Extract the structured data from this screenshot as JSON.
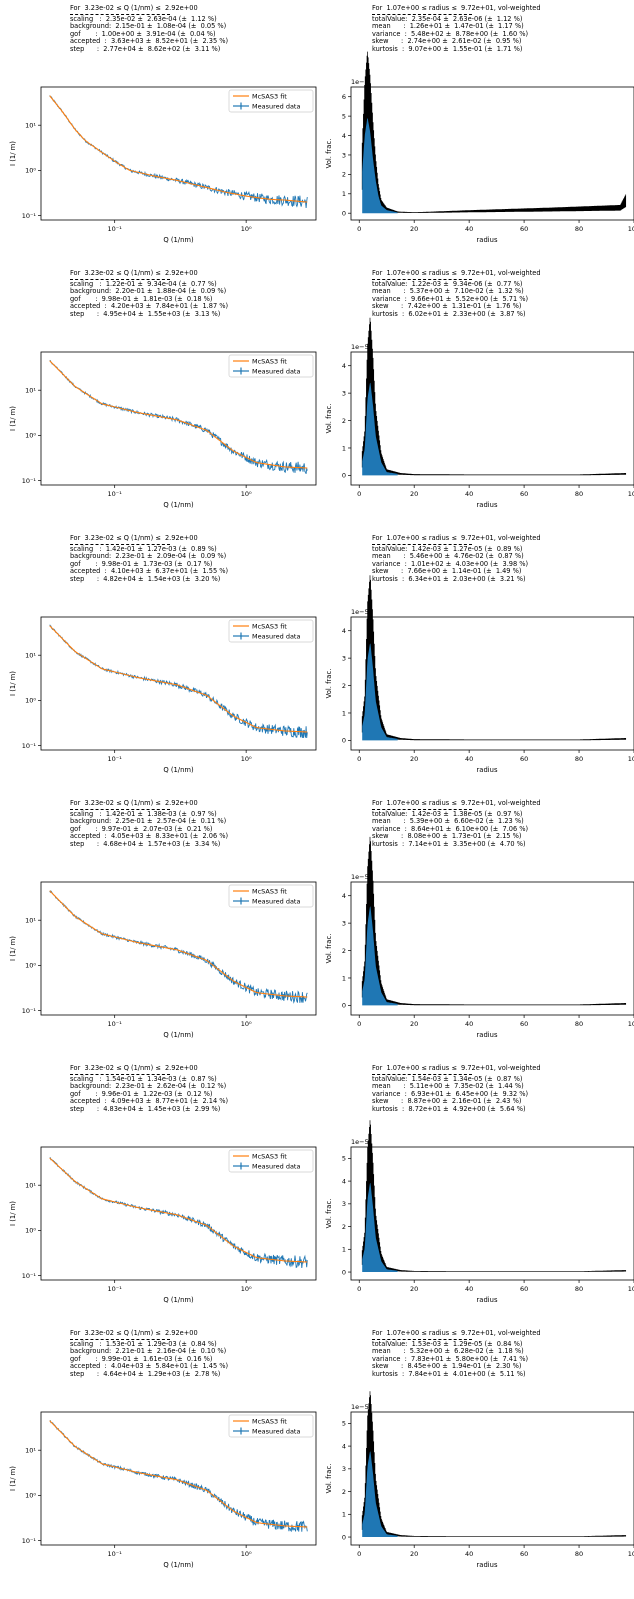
{
  "common": {
    "q_range": "For  3.23e-02 ≤ Q (1/nm) ≤  2.92e+00",
    "r_range": "For  1.07e+00 ≤ radius ≤  9.72e+01, vol-weighted",
    "legend_fit": "McSAS3 fit",
    "legend_measured": "Measured data",
    "left_xlabel": "Q (1/nm)",
    "left_ylabel": "I (1/ m)",
    "right_xlabel": "radius",
    "right_ylabel": "Vol. frac.",
    "left_xticks": [
      "10⁻¹",
      "10⁰"
    ],
    "left_yticks": [
      "10¹",
      "10⁰",
      "10⁻¹"
    ],
    "right_xticks": [
      "0",
      "20",
      "40",
      "60",
      "80",
      "100"
    ],
    "colors": {
      "fit": "#ff7f0e",
      "measured": "#1f77b4",
      "hist_fill": "#1f77b4",
      "hist_err": "#000000"
    }
  },
  "panels": [
    {
      "left_stats": [
        "scaling   :  2.35e-02 ±  2.63e-04 (±  1.12 %)",
        "background:  2.15e-01 ±  1.08e-04 (±  0.05 %)",
        "gof       :  1.00e+00 ±  3.91e-04 (±  0.04 %)",
        "accepted  :  3.63e+03 ±  8.52e+01 (±  2.35 %)",
        "step      :  2.77e+04 ±  8.62e+02 (±  3.11 %)"
      ],
      "right_stats": [
        "totalValue:  2.35e-04 ±  2.63e-06 (±  1.12 %)",
        "mean      :  1.26e+01 ±  1.47e-01 (±  1.17 %)",
        "variance  :  5.48e+02 ±  8.78e+00 (±  1.60 %)",
        "skew      :  2.74e+00 ±  2.61e-02 (±  0.95 %)",
        "kurtosis  :  9.07e+00 ±  1.55e-01 (±  1.71 %)"
      ],
      "right_scale": "1e−6",
      "right_yticks": [
        "0",
        "1",
        "2",
        "3",
        "4",
        "5",
        "6"
      ]
    },
    {
      "left_stats": [
        "scaling   :  1.22e-01 ±  9.34e-04 (±  0.77 %)",
        "background:  2.20e-01 ±  1.88e-04 (±  0.09 %)",
        "gof       :  9.98e-01 ±  1.81e-03 (±  0.18 %)",
        "accepted  :  4.20e+03 ±  7.84e+01 (±  1.87 %)",
        "step      :  4.95e+04 ±  1.55e+03 (±  3.13 %)"
      ],
      "right_stats": [
        "totalValue:  1.22e-03 ±  9.34e-06 (±  0.77 %)",
        "mean      :  5.37e+00 ±  7.10e-02 (±  1.32 %)",
        "variance  :  9.66e+01 ±  5.52e+00 (±  5.71 %)",
        "skew      :  7.42e+00 ±  1.31e-01 (±  1.76 %)",
        "kurtosis  :  6.02e+01 ±  2.33e+00 (±  3.87 %)"
      ],
      "right_scale": "1e−5",
      "right_yticks": [
        "0",
        "1",
        "2",
        "3",
        "4"
      ]
    },
    {
      "left_stats": [
        "scaling   :  1.42e-01 ±  1.27e-03 (±  0.89 %)",
        "background:  2.23e-01 ±  2.09e-04 (±  0.09 %)",
        "gof       :  9.98e-01 ±  1.73e-03 (±  0.17 %)",
        "accepted  :  4.10e+03 ±  6.37e+01 (±  1.55 %)",
        "step      :  4.82e+04 ±  1.54e+03 (±  3.20 %)"
      ],
      "right_stats": [
        "totalValue:  1.42e-03 ±  1.27e-05 (±  0.89 %)",
        "mean      :  5.46e+00 ±  4.76e-02 (±  0.87 %)",
        "variance  :  1.01e+02 ±  4.03e+00 (±  3.98 %)",
        "skew      :  7.66e+00 ±  1.14e-01 (±  1.49 %)",
        "kurtosis  :  6.34e+01 ±  2.03e+00 (±  3.21 %)"
      ],
      "right_scale": "1e−5",
      "right_yticks": [
        "0",
        "1",
        "2",
        "3",
        "4"
      ]
    },
    {
      "left_stats": [
        "scaling   :  1.42e-01 ±  1.38e-03 (±  0.97 %)",
        "background:  2.25e-01 ±  2.57e-04 (±  0.11 %)",
        "gof       :  9.97e-01 ±  2.07e-03 (±  0.21 %)",
        "accepted  :  4.05e+03 ±  8.33e+01 (±  2.06 %)",
        "step      :  4.68e+04 ±  1.57e+03 (±  3.34 %)"
      ],
      "right_stats": [
        "totalValue:  1.42e-03 ±  1.38e-05 (±  0.97 %)",
        "mean      :  5.39e+00 ±  6.60e-02 (±  1.23 %)",
        "variance  :  8.64e+01 ±  6.10e+00 (±  7.06 %)",
        "skew      :  8.08e+00 ±  1.73e-01 (±  2.15 %)",
        "kurtosis  :  7.14e+01 ±  3.35e+00 (±  4.70 %)"
      ],
      "right_scale": "1e−5",
      "right_yticks": [
        "0",
        "1",
        "2",
        "3",
        "4"
      ]
    },
    {
      "left_stats": [
        "scaling   :  1.54e-01 ±  1.34e-03 (±  0.87 %)",
        "background:  2.23e-01 ±  2.62e-04 (±  0.12 %)",
        "gof       :  9.96e-01 ±  1.22e-03 (±  0.12 %)",
        "accepted  :  4.09e+03 ±  8.77e+01 (±  2.14 %)",
        "step      :  4.83e+04 ±  1.45e+03 (±  2.99 %)"
      ],
      "right_stats": [
        "totalValue:  1.54e-03 ±  1.34e-05 (±  0.87 %)",
        "mean      :  5.11e+00 ±  7.35e-02 (±  1.44 %)",
        "variance  :  6.93e+01 ±  6.45e+00 (±  9.32 %)",
        "skew      :  8.87e+00 ±  2.16e-01 (±  2.43 %)",
        "kurtosis  :  8.72e+01 ±  4.92e+00 (±  5.64 %)"
      ],
      "right_scale": "1e−5",
      "right_yticks": [
        "0",
        "1",
        "2",
        "3",
        "4",
        "5"
      ]
    },
    {
      "left_stats": [
        "scaling   :  1.53e-01 ±  1.29e-03 (±  0.84 %)",
        "background:  2.21e-01 ±  2.16e-04 (±  0.10 %)",
        "gof       :  9.99e-01 ±  1.61e-03 (±  0.16 %)",
        "accepted  :  4.04e+03 ±  5.84e+01 (±  1.45 %)",
        "step      :  4.64e+04 ±  1.29e+03 (±  2.78 %)"
      ],
      "right_stats": [
        "totalValue:  1.53e-03 ±  1.29e-05 (±  0.84 %)",
        "mean      :  5.32e+00 ±  6.28e-02 (±  1.18 %)",
        "variance  :  7.83e+01 ±  5.80e+00 (±  7.41 %)",
        "skew      :  8.45e+00 ±  1.94e-01 (±  2.30 %)",
        "kurtosis  :  7.84e+01 ±  4.01e+00 (±  5.11 %)"
      ],
      "right_scale": "1e−5",
      "right_yticks": [
        "0",
        "1",
        "2",
        "3",
        "4",
        "5"
      ]
    }
  ],
  "chart_data": [
    {
      "type": "line",
      "xscale": "log",
      "yscale": "log",
      "xlim": [
        0.0275,
        3.4
      ],
      "ylim": [
        0.08,
        70
      ],
      "xlabel": "Q (1/nm)",
      "ylabel": "I (1/ m)",
      "legend_position": "upper right",
      "series": [
        {
          "name": "McSAS3 fit",
          "x": [
            0.032,
            0.04,
            0.05,
            0.06,
            0.08,
            0.1,
            0.13,
            0.2,
            0.3,
            0.5,
            0.7,
            1.0,
            1.5,
            2.0,
            2.9
          ],
          "y": [
            45,
            20,
            8,
            4.5,
            2.5,
            1.6,
            1.0,
            0.75,
            0.6,
            0.42,
            0.33,
            0.27,
            0.23,
            0.22,
            0.2
          ]
        },
        {
          "name": "Measured data",
          "note": "noisy around fit"
        }
      ]
    },
    {
      "type": "bar",
      "xlim": [
        -3,
        100
      ],
      "xlabel": "radius",
      "ylabel": "Vol. frac.",
      "y_multiplier": "1e-6",
      "series": [
        {
          "name": "histogram",
          "x": [
            1,
            2,
            3,
            4,
            5,
            6,
            7,
            8,
            10,
            14,
            20,
            40,
            70,
            95,
            97
          ],
          "y": [
            2.5,
            5.0,
            6.2,
            5.2,
            3.5,
            2.1,
            1.1,
            0.5,
            0.2,
            0.05,
            0.02,
            0.1,
            0.2,
            0.3,
            0.7
          ]
        }
      ]
    },
    {
      "type": "line",
      "xscale": "log",
      "yscale": "log",
      "xlim": [
        0.0275,
        3.4
      ],
      "ylim": [
        0.08,
        70
      ],
      "series": [
        {
          "name": "McSAS3 fit",
          "x": [
            0.032,
            0.05,
            0.08,
            0.15,
            0.3,
            0.5,
            0.8,
            1.2,
            2.0,
            2.9
          ],
          "y": [
            45,
            12,
            5,
            3.2,
            2.2,
            1.3,
            0.45,
            0.25,
            0.2,
            0.19
          ]
        },
        {
          "name": "Measured data"
        }
      ]
    },
    {
      "type": "bar",
      "xlim": [
        -3,
        100
      ],
      "y_multiplier": "1e-5",
      "series": [
        {
          "name": "histogram",
          "x": [
            2,
            3,
            4,
            5,
            6,
            8,
            10,
            15,
            20,
            40,
            60,
            80,
            97
          ],
          "y": [
            1.2,
            3.5,
            4.3,
            3.2,
            1.8,
            0.6,
            0.15,
            0.05,
            0.02,
            0.01,
            0.01,
            0.01,
            0.05
          ]
        }
      ]
    },
    {
      "type": "line",
      "xscale": "log",
      "yscale": "log",
      "xlim": [
        0.0275,
        3.4
      ],
      "ylim": [
        0.08,
        70
      ],
      "series": [
        {
          "name": "McSAS3 fit",
          "x": [
            0.032,
            0.05,
            0.08,
            0.15,
            0.3,
            0.5,
            0.8,
            1.2,
            2.0,
            2.9
          ],
          "y": [
            45,
            12,
            5,
            3.2,
            2.2,
            1.3,
            0.45,
            0.25,
            0.21,
            0.2
          ]
        },
        {
          "name": "Measured data"
        }
      ]
    },
    {
      "type": "bar",
      "xlim": [
        -3,
        100
      ],
      "y_multiplier": "1e-5",
      "series": [
        {
          "name": "histogram",
          "x": [
            2,
            3,
            4,
            5,
            6,
            8,
            10,
            15,
            20,
            40,
            60,
            80,
            97
          ],
          "y": [
            1.2,
            3.7,
            4.5,
            3.3,
            1.8,
            0.6,
            0.15,
            0.05,
            0.02,
            0.01,
            0.01,
            0.01,
            0.05
          ]
        }
      ]
    },
    {
      "type": "line",
      "xscale": "log",
      "yscale": "log",
      "xlim": [
        0.0275,
        3.4
      ],
      "ylim": [
        0.08,
        70
      ],
      "series": [
        {
          "name": "McSAS3 fit",
          "x": [
            0.032,
            0.05,
            0.08,
            0.15,
            0.3,
            0.5,
            0.8,
            1.2,
            2.0,
            2.9
          ],
          "y": [
            45,
            12,
            5,
            3.2,
            2.2,
            1.3,
            0.45,
            0.25,
            0.21,
            0.2
          ]
        },
        {
          "name": "Measured data"
        }
      ]
    },
    {
      "type": "bar",
      "xlim": [
        -3,
        100
      ],
      "y_multiplier": "1e-5",
      "series": [
        {
          "name": "histogram",
          "x": [
            2,
            3,
            4,
            5,
            6,
            8,
            10,
            15,
            20,
            40,
            60,
            80,
            97
          ],
          "y": [
            1.2,
            3.7,
            4.6,
            3.4,
            1.8,
            0.6,
            0.15,
            0.05,
            0.02,
            0.01,
            0.01,
            0.01,
            0.05
          ]
        }
      ]
    },
    {
      "type": "line",
      "xscale": "log",
      "yscale": "log",
      "xlim": [
        0.0275,
        3.4
      ],
      "ylim": [
        0.08,
        70
      ],
      "series": [
        {
          "name": "McSAS3 fit",
          "x": [
            0.032,
            0.05,
            0.08,
            0.15,
            0.3,
            0.5,
            0.8,
            1.2,
            2.0,
            2.9
          ],
          "y": [
            40,
            12,
            5,
            3.2,
            2.2,
            1.3,
            0.45,
            0.25,
            0.21,
            0.2
          ]
        },
        {
          "name": "Measured data"
        }
      ]
    },
    {
      "type": "bar",
      "xlim": [
        -3,
        100
      ],
      "y_multiplier": "1e-5",
      "series": [
        {
          "name": "histogram",
          "x": [
            2,
            3,
            4,
            5,
            6,
            8,
            10,
            15,
            20,
            40,
            60,
            80,
            97
          ],
          "y": [
            1.3,
            4.0,
            5.0,
            3.6,
            1.9,
            0.6,
            0.15,
            0.05,
            0.02,
            0.01,
            0.01,
            0.01,
            0.05
          ]
        }
      ]
    },
    {
      "type": "line",
      "xscale": "log",
      "yscale": "log",
      "xlim": [
        0.0275,
        3.4
      ],
      "ylim": [
        0.08,
        70
      ],
      "series": [
        {
          "name": "McSAS3 fit",
          "x": [
            0.032,
            0.05,
            0.08,
            0.15,
            0.3,
            0.5,
            0.8,
            1.2,
            2.0,
            2.9
          ],
          "y": [
            45,
            12,
            5,
            3.2,
            2.2,
            1.3,
            0.45,
            0.25,
            0.21,
            0.2
          ]
        },
        {
          "name": "Measured data"
        }
      ]
    },
    {
      "type": "bar",
      "xlim": [
        -3,
        100
      ],
      "y_multiplier": "1e-5",
      "series": [
        {
          "name": "histogram",
          "x": [
            2,
            3,
            4,
            5,
            6,
            8,
            10,
            15,
            20,
            40,
            60,
            80,
            97
          ],
          "y": [
            1.3,
            3.9,
            4.8,
            3.5,
            1.9,
            0.6,
            0.15,
            0.05,
            0.02,
            0.01,
            0.01,
            0.01,
            0.05
          ]
        }
      ]
    }
  ]
}
